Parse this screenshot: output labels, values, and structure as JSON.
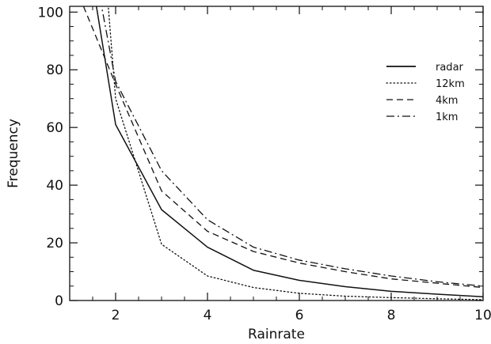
{
  "chart_data": {
    "type": "line",
    "title": "",
    "xlabel": "Rainrate",
    "ylabel": "Frequency",
    "xlim": [
      1,
      10
    ],
    "ylim": [
      0,
      102
    ],
    "grid": false,
    "legend_position": "top-right",
    "x_ticks": [
      2,
      4,
      6,
      8,
      10
    ],
    "y_ticks": [
      0,
      20,
      40,
      60,
      80,
      100
    ],
    "series": [
      {
        "name": "radar",
        "style": "solid",
        "x": [
          1.5,
          2,
          3,
          4,
          5,
          6,
          7,
          8,
          9,
          10
        ],
        "y": [
          110,
          61,
          31.5,
          18.5,
          10.5,
          7,
          4.8,
          3.2,
          2.2,
          1.3
        ]
      },
      {
        "name": "12km",
        "style": "dotted",
        "x": [
          1.8,
          2,
          3,
          4,
          5,
          6,
          7,
          8,
          9,
          10
        ],
        "y": [
          110,
          70,
          19.5,
          8.5,
          4.5,
          2.5,
          1.5,
          1,
          0.6,
          0.3
        ]
      },
      {
        "name": "4km",
        "style": "dashed",
        "x": [
          1.3,
          2,
          3,
          4,
          5,
          6,
          7,
          8,
          9,
          10
        ],
        "y": [
          102,
          75,
          38,
          24,
          17,
          13,
          10,
          7.5,
          6,
          4.5
        ]
      },
      {
        "name": "1km",
        "style": "dashdot",
        "x": [
          1.6,
          2,
          3,
          4,
          5,
          6,
          7,
          8,
          9,
          10
        ],
        "y": [
          110,
          76,
          45,
          28,
          18.5,
          14,
          11,
          8.5,
          6.5,
          5
        ]
      }
    ]
  }
}
